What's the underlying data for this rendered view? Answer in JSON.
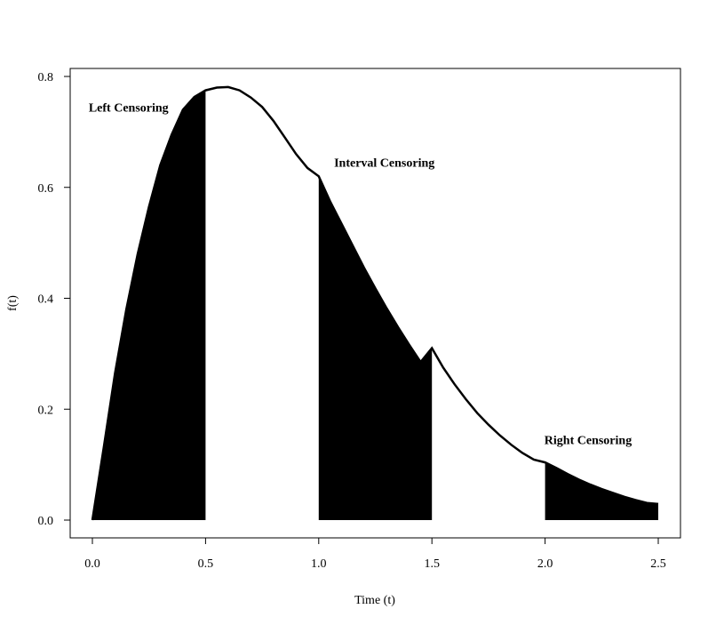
{
  "chart_data": {
    "type": "area",
    "title": "",
    "xlabel": "Time (t)",
    "ylabel": "f(t)",
    "xlim": [
      -0.1,
      2.6
    ],
    "ylim": [
      -0.03,
      0.81
    ],
    "x_ticks": [
      0.0,
      0.5,
      1.0,
      1.5,
      2.0,
      2.5
    ],
    "x_tick_labels": [
      "0.0",
      "0.5",
      "1.0",
      "1.5",
      "2.0",
      "2.5"
    ],
    "y_ticks": [
      0.0,
      0.2,
      0.4,
      0.6,
      0.8
    ],
    "y_tick_labels": [
      "0.0",
      "0.2",
      "0.4",
      "0.6",
      "0.8"
    ],
    "grid": false,
    "curve": {
      "x": [
        0.0,
        0.05,
        0.1,
        0.15,
        0.2,
        0.25,
        0.3,
        0.35,
        0.4,
        0.45,
        0.5,
        0.55,
        0.6,
        0.65,
        0.7,
        0.75,
        0.8,
        0.85,
        0.9,
        0.95,
        1.0,
        1.05,
        1.1,
        1.15,
        1.2,
        1.25,
        1.3,
        1.35,
        1.4,
        1.45,
        1.5,
        1.55,
        1.6,
        1.65,
        1.7,
        1.75,
        1.8,
        1.85,
        1.9,
        1.95,
        2.0,
        2.05,
        2.1,
        2.15,
        2.2,
        2.25,
        2.3,
        2.35,
        2.4,
        2.45,
        2.5
      ],
      "y": [
        0.0,
        0.13,
        0.265,
        0.38,
        0.48,
        0.565,
        0.64,
        0.695,
        0.74,
        0.763,
        0.775,
        0.78,
        0.781,
        0.775,
        0.762,
        0.745,
        0.72,
        0.69,
        0.66,
        0.635,
        0.62,
        0.575,
        0.535,
        0.495,
        0.455,
        0.418,
        0.382,
        0.348,
        0.316,
        0.285,
        0.31,
        0.275,
        0.245,
        0.218,
        0.193,
        0.172,
        0.153,
        0.136,
        0.121,
        0.109,
        0.104,
        0.094,
        0.083,
        0.073,
        0.064,
        0.056,
        0.049,
        0.042,
        0.036,
        0.031,
        0.029
      ]
    },
    "shaded_regions": [
      {
        "label": "Left Censoring",
        "from": 0.0,
        "to": 0.5,
        "label_x": 0.16,
        "label_y": 0.745
      },
      {
        "label": "Interval Censoring",
        "from": 1.0,
        "to": 1.5,
        "label_x": 1.29,
        "label_y": 0.645
      },
      {
        "label": "Right Censoring",
        "from": 2.0,
        "to": 2.5,
        "label_x": 2.19,
        "label_y": 0.145
      }
    ]
  }
}
